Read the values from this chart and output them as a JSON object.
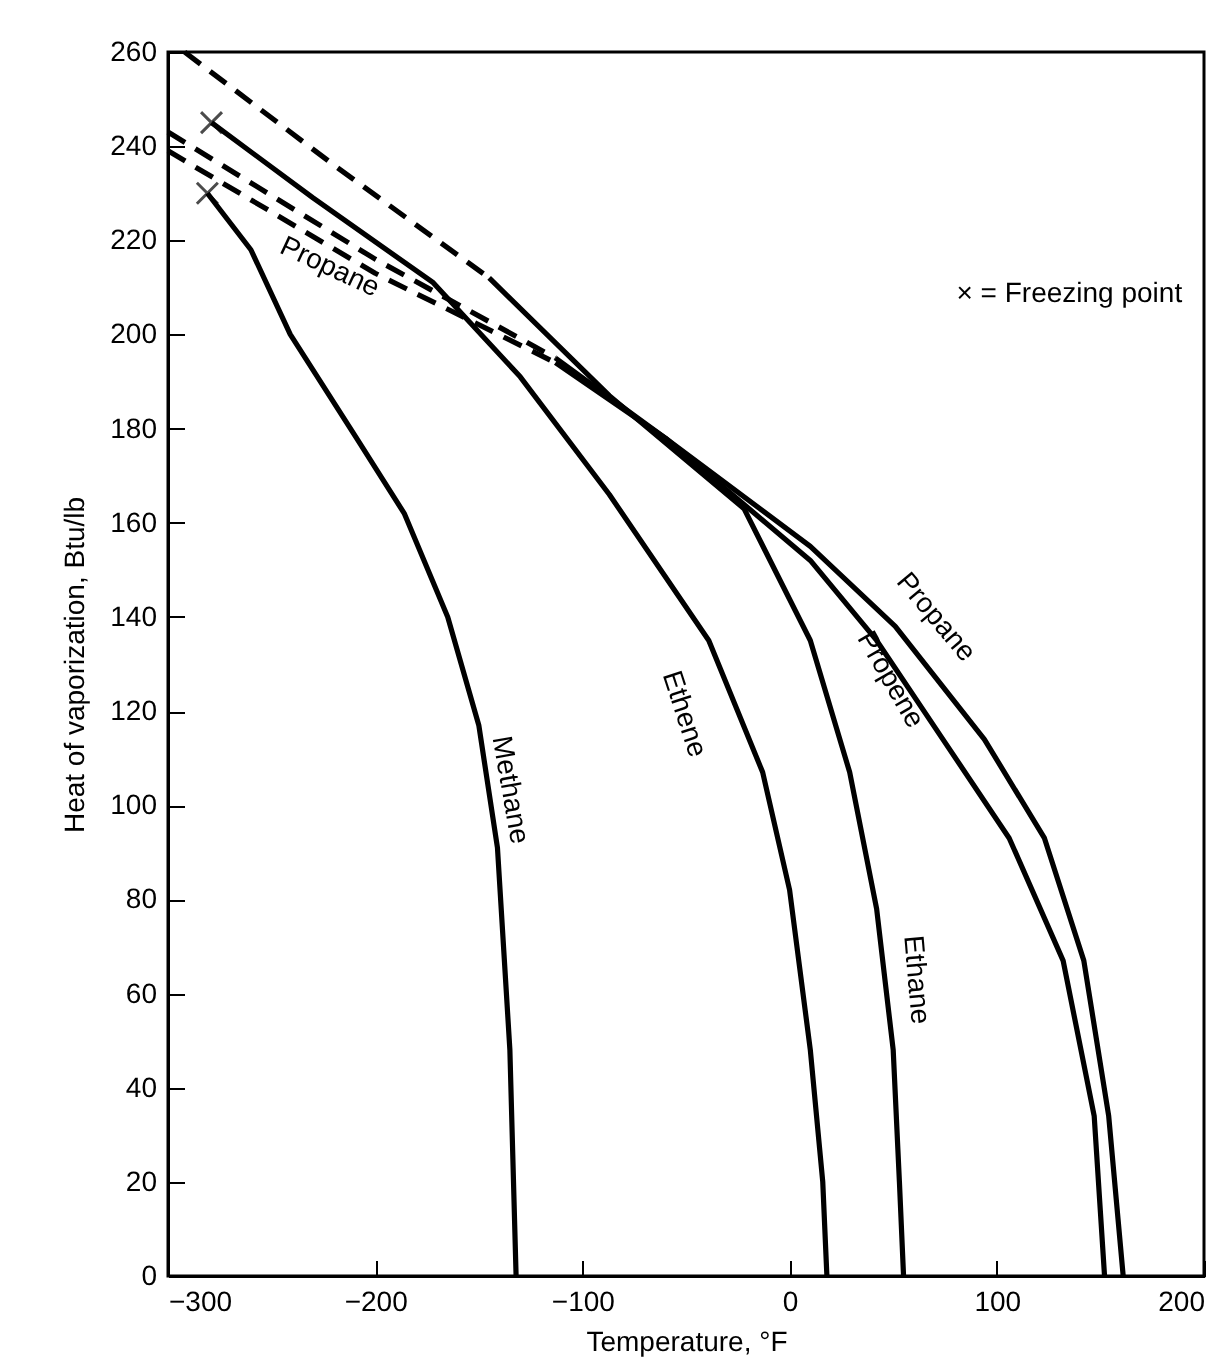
{
  "chart_data": {
    "type": "line",
    "xlabel": "Temperature, °F",
    "ylabel": "Heat of vaporization, Btu/lb",
    "xlim": [
      -300,
      200
    ],
    "ylim": [
      0,
      260
    ],
    "xticks": [
      {
        "value": -300,
        "label": "−300"
      },
      {
        "value": -200,
        "label": "−200"
      },
      {
        "value": -100,
        "label": "−100"
      },
      0,
      100,
      200
    ],
    "yticks": [
      0,
      20,
      40,
      60,
      80,
      100,
      120,
      140,
      160,
      180,
      200,
      220,
      240,
      260
    ],
    "grid": false,
    "series": [
      {
        "color": "#000000",
        "line_style": "solid",
        "x": [
          -281,
          -260,
          -241,
          -209,
          -186,
          -165,
          -150,
          -141,
          -135,
          -132
        ],
        "values": [
          230,
          218,
          200,
          178,
          162,
          140,
          117,
          91,
          48,
          0
        ]
      },
      {
        "color": "#000000",
        "line_style": "solid",
        "x": [
          -279,
          -230,
          -172,
          -130,
          -87,
          -39,
          -13,
          0,
          10,
          16,
          18
        ],
        "values": [
          245,
          229,
          211,
          191,
          166,
          135,
          107,
          82,
          48,
          20,
          0
        ]
      },
      {
        "color": "#000000",
        "line_style": "dashed",
        "x": [
          -292,
          -220,
          -145
        ],
        "values": [
          260,
          236,
          212
        ]
      },
      {
        "color": "#000000",
        "line_style": "solid",
        "x": [
          -145,
          -87,
          -22,
          10,
          29,
          42,
          50,
          53,
          55
        ],
        "values": [
          212,
          187,
          163,
          135,
          107,
          78,
          48,
          20,
          0
        ]
      },
      {
        "color": "#000000",
        "line_style": "dashed",
        "x": [
          -300,
          -200,
          -113
        ],
        "values": [
          243,
          216,
          195
        ]
      },
      {
        "color": "#000000",
        "line_style": "solid",
        "x": [
          -113,
          -60,
          10,
          42,
          74,
          106,
          132,
          147,
          152
        ],
        "values": [
          195,
          178,
          152,
          135,
          114,
          93,
          67,
          34,
          0
        ]
      },
      {
        "color": "#000000",
        "line_style": "dashed",
        "x": [
          -300,
          -200,
          -113
        ],
        "values": [
          239,
          213,
          194
        ]
      },
      {
        "color": "#000000",
        "line_style": "solid",
        "x": [
          -113,
          -60,
          10,
          51,
          94,
          123,
          142,
          154,
          161
        ],
        "values": [
          194,
          178,
          155,
          138,
          114,
          93,
          67,
          34,
          0
        ]
      },
      {
        "type": "scatter",
        "marker": "cross",
        "color": "#000000",
        "x": [
          -281,
          -279
        ],
        "values": [
          230,
          245
        ]
      }
    ],
    "annotations": [
      "Propane",
      "Propane",
      "Propene",
      "Ethene",
      "Methane",
      "Ethane",
      "× = Freezing point"
    ]
  }
}
